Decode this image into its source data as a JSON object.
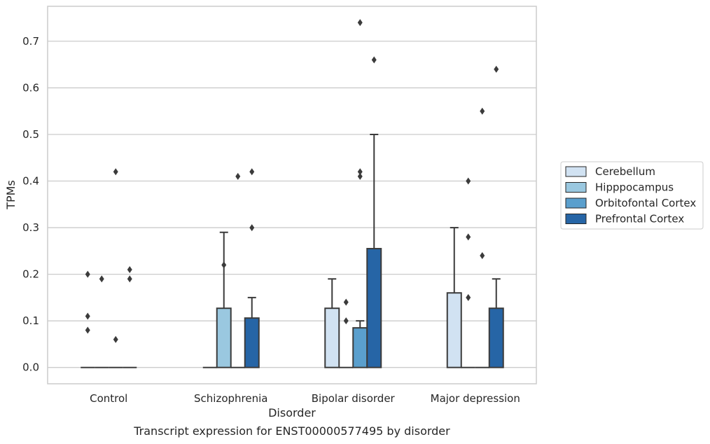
{
  "chart_data": {
    "type": "bar",
    "xlabel": "Disorder",
    "ylabel": "TPMs",
    "categories": [
      "Control",
      "Schizophrenia",
      "Bipolar disorder",
      "Major depression"
    ],
    "ylim": [
      -0.035,
      0.775
    ],
    "yticks": [
      "0.0",
      "0.1",
      "0.2",
      "0.3",
      "0.4",
      "0.5",
      "0.6",
      "0.7"
    ],
    "ytick_values": [
      0,
      0.1,
      0.2,
      0.3,
      0.4,
      0.5,
      0.6,
      0.7
    ],
    "grid": true,
    "legend_position": "right",
    "series": [
      {
        "name": "Cerebellum",
        "color": "#d1e2f2",
        "values": [
          0,
          0,
          0.127,
          0.16
        ],
        "whisker_low": [
          0,
          0,
          0,
          0
        ],
        "whisker_high": [
          0,
          0,
          0.19,
          0.3
        ],
        "outliers": [
          [
            0.2,
            0.11,
            0.08
          ],
          [],
          [],
          []
        ]
      },
      {
        "name": "Hipppocampus",
        "color": "#9ac8e0",
        "values": [
          0,
          0.127,
          0,
          0
        ],
        "whisker_low": [
          0,
          0,
          0,
          0
        ],
        "whisker_high": [
          0,
          0.29,
          0,
          0
        ],
        "outliers": [
          [
            0.19
          ],
          [
            0.22
          ],
          [
            0.14,
            0.1
          ],
          [
            0.4,
            0.28,
            0.15
          ]
        ]
      },
      {
        "name": "Orbitofontal Cortex",
        "color": "#5a9fcd",
        "values": [
          0,
          0,
          0.085,
          0
        ],
        "whisker_low": [
          0,
          0,
          0,
          0
        ],
        "whisker_high": [
          0,
          0,
          0.1,
          0
        ],
        "outliers": [
          [
            0.42,
            0.06
          ],
          [
            0.41
          ],
          [
            0.74,
            0.42,
            0.41
          ],
          [
            0.55,
            0.24
          ]
        ]
      },
      {
        "name": "Prefrontal Cortex",
        "color": "#2665a6",
        "values": [
          0,
          0.106,
          0.255,
          0.127
        ],
        "whisker_low": [
          0,
          0,
          0,
          0
        ],
        "whisker_high": [
          0,
          0.15,
          0.5,
          0.19
        ],
        "outliers": [
          [
            0.21,
            0.19
          ],
          [
            0.42,
            0.3
          ],
          [
            0.66
          ],
          [
            0.64
          ]
        ]
      }
    ]
  },
  "caption": "Transcript expression for ENST00000577495 by disorder"
}
